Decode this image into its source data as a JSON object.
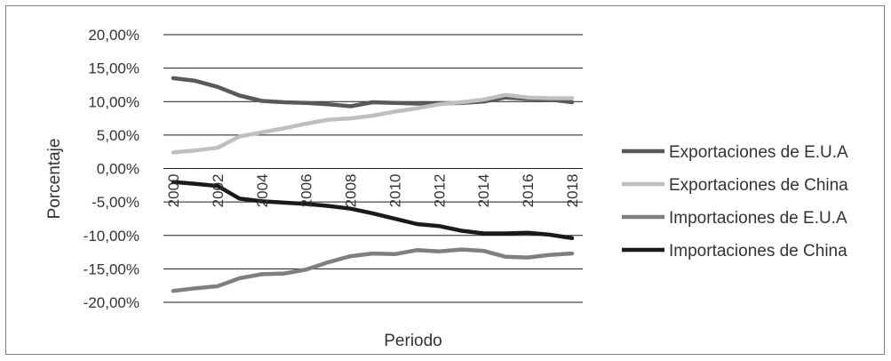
{
  "chart_data": {
    "type": "line",
    "title": "",
    "xlabel": "Periodo",
    "ylabel": "Porcentaje",
    "ylim": [
      -20,
      20
    ],
    "y_ticks": [
      {
        "value": 20,
        "label": "20,00%"
      },
      {
        "value": 15,
        "label": "15,00%"
      },
      {
        "value": 10,
        "label": "10,00%"
      },
      {
        "value": 5,
        "label": "5,00%"
      },
      {
        "value": 0,
        "label": "0,00%"
      },
      {
        "value": -5,
        "label": "-5,00%"
      },
      {
        "value": -10,
        "label": "-10,00%"
      },
      {
        "value": -15,
        "label": "-15,00%"
      },
      {
        "value": -20,
        "label": "-20,00%"
      }
    ],
    "x": [
      2000,
      2001,
      2002,
      2003,
      2004,
      2005,
      2006,
      2007,
      2008,
      2009,
      2010,
      2011,
      2012,
      2013,
      2014,
      2015,
      2016,
      2017,
      2018
    ],
    "x_tick_labels": [
      "2000",
      "2002",
      "2004",
      "2006",
      "2008",
      "2010",
      "2012",
      "2014",
      "2016",
      "2018"
    ],
    "grid": true,
    "legend_position": "right",
    "series": [
      {
        "name": "Exportaciones de E.U.A",
        "color": "#595959",
        "values": [
          13.5,
          13.1,
          12.2,
          10.9,
          10.1,
          9.9,
          9.8,
          9.6,
          9.3,
          9.9,
          9.8,
          9.7,
          9.7,
          9.8,
          10.0,
          10.6,
          10.4,
          10.3,
          9.9
        ]
      },
      {
        "name": "Exportaciones de China",
        "color": "#bfbfbf",
        "values": [
          2.4,
          2.7,
          3.1,
          4.8,
          5.4,
          6.0,
          6.7,
          7.3,
          7.5,
          7.9,
          8.5,
          9.0,
          9.6,
          9.9,
          10.3,
          11.0,
          10.6,
          10.5,
          10.5
        ]
      },
      {
        "name": "Importaciones de E.U.A",
        "color": "#7f7f7f",
        "values": [
          -18.3,
          -17.9,
          -17.6,
          -16.4,
          -15.8,
          -15.7,
          -15.1,
          -14.0,
          -13.1,
          -12.7,
          -12.8,
          -12.2,
          -12.4,
          -12.1,
          -12.3,
          -13.2,
          -13.3,
          -12.9,
          -12.7
        ]
      },
      {
        "name": "Importaciones de China",
        "color": "#1a1a1a",
        "values": [
          -2.0,
          -2.3,
          -2.6,
          -4.5,
          -4.9,
          -5.1,
          -5.3,
          -5.6,
          -6.0,
          -6.7,
          -7.5,
          -8.3,
          -8.6,
          -9.3,
          -9.7,
          -9.7,
          -9.6,
          -9.9,
          -10.4
        ]
      }
    ]
  }
}
